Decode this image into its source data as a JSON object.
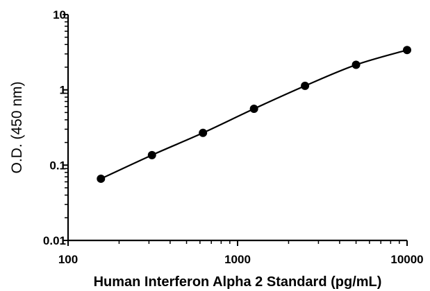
{
  "chart_data": {
    "type": "scatter",
    "xlabel": "Human Interferon Alpha 2 Standard (pg/mL)",
    "ylabel": "O.D. (450 nm)",
    "x_scale": "log",
    "y_scale": "log",
    "xlim": [
      100,
      10000
    ],
    "ylim": [
      0.01,
      10
    ],
    "x_ticks": [
      "100",
      "1000",
      "10000"
    ],
    "y_ticks": [
      "0.01",
      "0.1",
      "1",
      "10"
    ],
    "grid": false,
    "legend": "none",
    "marker_color": "#000000",
    "fit_curve": true,
    "points": [
      {
        "x": 156.25,
        "y": 0.066
      },
      {
        "x": 312.5,
        "y": 0.136
      },
      {
        "x": 625,
        "y": 0.268
      },
      {
        "x": 1250,
        "y": 0.56
      },
      {
        "x": 2500,
        "y": 1.13
      },
      {
        "x": 5000,
        "y": 2.15
      },
      {
        "x": 10000,
        "y": 3.38
      }
    ]
  }
}
